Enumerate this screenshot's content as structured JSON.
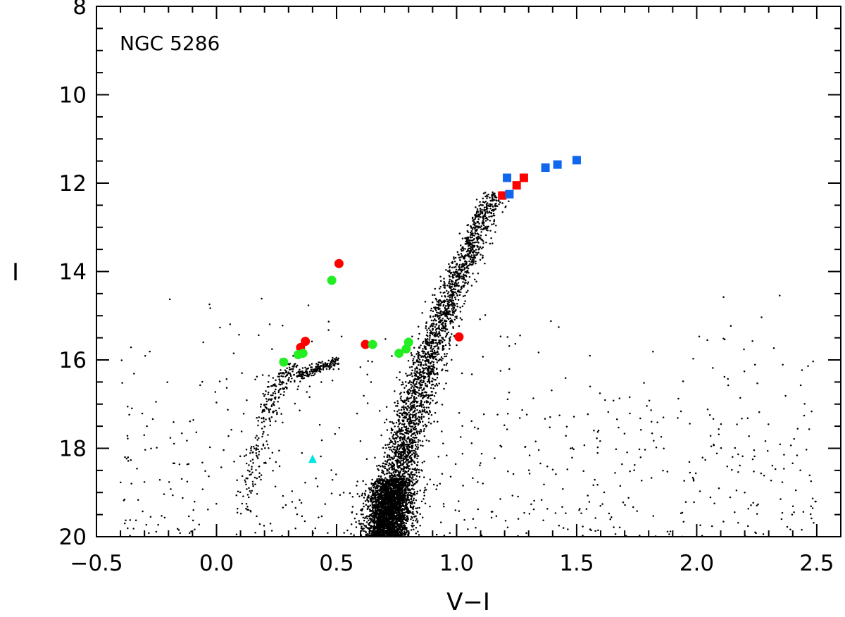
{
  "chart_data": {
    "type": "scatter",
    "title": "",
    "annotation": "NGC 5286",
    "xlabel": "V−I",
    "ylabel": "I",
    "xlim": [
      -0.5,
      2.6
    ],
    "ylim": [
      20,
      8
    ],
    "y_inverted": true,
    "grid": false,
    "x_ticks": [
      -0.5,
      0.0,
      0.5,
      1.0,
      1.5,
      2.0,
      2.5
    ],
    "x_tick_labels": [
      "−0.5",
      "0.0",
      "0.5",
      "1.0",
      "1.5",
      "2.0",
      "2.5"
    ],
    "y_ticks": [
      8,
      10,
      12,
      14,
      16,
      18,
      20
    ],
    "y_tick_labels": [
      "8",
      "10",
      "12",
      "14",
      "16",
      "18",
      "20"
    ],
    "field_stars_color": "#000000",
    "series": [
      {
        "marker": "square",
        "color": "#ff0000",
        "points": [
          [
            1.19,
            12.28
          ],
          [
            1.25,
            12.05
          ],
          [
            1.28,
            11.88
          ]
        ]
      },
      {
        "marker": "square",
        "color": "#1166ee",
        "points": [
          [
            1.21,
            11.88
          ],
          [
            1.22,
            12.25
          ],
          [
            1.37,
            11.65
          ],
          [
            1.42,
            11.58
          ],
          [
            1.5,
            11.48
          ]
        ]
      },
      {
        "marker": "circle",
        "color": "#ff0000",
        "points": [
          [
            0.51,
            13.82
          ],
          [
            0.37,
            15.58
          ],
          [
            0.35,
            15.72
          ],
          [
            0.62,
            15.65
          ],
          [
            1.01,
            15.48
          ]
        ]
      },
      {
        "marker": "circle",
        "color": "#22ee22",
        "points": [
          [
            0.48,
            14.2
          ],
          [
            0.28,
            16.05
          ],
          [
            0.34,
            15.88
          ],
          [
            0.36,
            15.85
          ],
          [
            0.65,
            15.65
          ],
          [
            0.76,
            15.85
          ],
          [
            0.79,
            15.75
          ],
          [
            0.8,
            15.6
          ]
        ]
      },
      {
        "marker": "triangle",
        "color": "#00e5e5",
        "points": [
          [
            0.4,
            18.25
          ]
        ]
      }
    ]
  }
}
